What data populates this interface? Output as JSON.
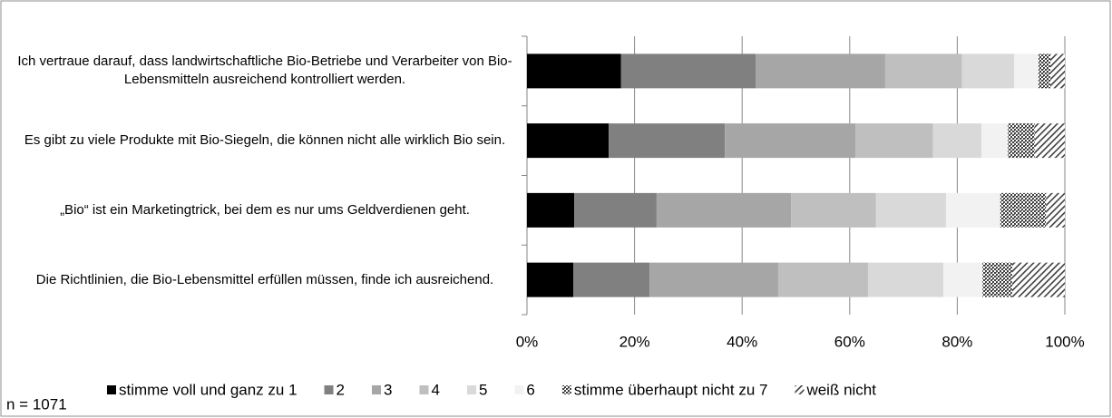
{
  "chart_data": {
    "type": "stacked_barh",
    "categories": [
      "Ich vertraue darauf, dass landwirtschaftliche Bio-Betriebe und Verarbeiter von Bio-Lebensmitteln ausreichend kontrolliert werden.",
      "Es gibt zu viele Produkte mit Bio-Siegeln, die können nicht alle wirklich Bio sein.",
      "„Bio“ ist ein Marketingtrick, bei dem es nur ums Geldverdienen geht.",
      "Die Richtlinien, die Bio-Lebensmittel erfüllen müssen, finde ich ausreichend."
    ],
    "series": [
      {
        "name": "stimme voll und ganz zu 1",
        "color": "#000000",
        "values": [
          17.5,
          15.2,
          8.8,
          8.6
        ]
      },
      {
        "name": "2",
        "color": "#808080",
        "values": [
          25.0,
          21.6,
          15.3,
          14.2
        ]
      },
      {
        "name": "3",
        "color": "#a6a6a6",
        "values": [
          24.1,
          24.3,
          25.0,
          23.9
        ]
      },
      {
        "name": "4",
        "color": "#bfbfbf",
        "values": [
          14.3,
          14.4,
          15.8,
          16.7
        ]
      },
      {
        "name": "5",
        "color": "#d9d9d9",
        "values": [
          9.7,
          9.0,
          13.0,
          14.0
        ]
      },
      {
        "name": "6",
        "color": "#f2f2f2",
        "values": [
          4.5,
          4.9,
          10.1,
          7.3
        ]
      },
      {
        "name": "stimme überhaupt nicht zu 7",
        "color": "#404040",
        "pattern": "crosshatch",
        "values": [
          2.2,
          5.0,
          8.5,
          5.5
        ]
      },
      {
        "name": "weiß nicht",
        "color": "#404040",
        "pattern": "diagonal",
        "values": [
          2.7,
          5.6,
          3.5,
          9.8
        ]
      }
    ],
    "xlim": [
      0,
      100
    ],
    "xticks": [
      {
        "value": 0,
        "label": "0%"
      },
      {
        "value": 20,
        "label": "20%"
      },
      {
        "value": 40,
        "label": "40%"
      },
      {
        "value": 60,
        "label": "60%"
      },
      {
        "value": 80,
        "label": "80%"
      },
      {
        "value": 100,
        "label": "100%"
      }
    ],
    "grid": true,
    "legend": "bottom",
    "annotation": "n = 1071"
  }
}
